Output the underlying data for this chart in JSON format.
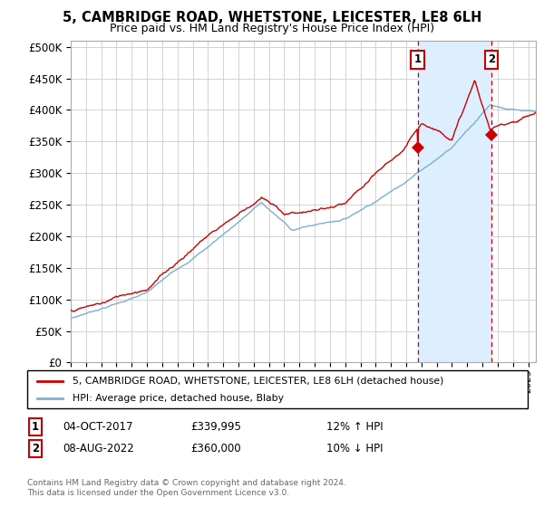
{
  "title": "5, CAMBRIDGE ROAD, WHETSTONE, LEICESTER, LE8 6LH",
  "subtitle": "Price paid vs. HM Land Registry's House Price Index (HPI)",
  "ylabel_ticks": [
    "£0",
    "£50K",
    "£100K",
    "£150K",
    "£200K",
    "£250K",
    "£300K",
    "£350K",
    "£400K",
    "£450K",
    "£500K"
  ],
  "ytick_vals": [
    0,
    50000,
    100000,
    150000,
    200000,
    250000,
    300000,
    350000,
    400000,
    450000,
    500000
  ],
  "ylim": [
    0,
    510000
  ],
  "xlim_start": 1995.0,
  "xlim_end": 2025.5,
  "marker1_x": 2017.75,
  "marker1_y": 339995,
  "marker1_label": "1",
  "marker1_date": "04-OCT-2017",
  "marker1_price": "£339,995",
  "marker1_hpi": "12% ↑ HPI",
  "marker2_x": 2022.58,
  "marker2_y": 360000,
  "marker2_label": "2",
  "marker2_date": "08-AUG-2022",
  "marker2_price": "£360,000",
  "marker2_hpi": "10% ↓ HPI",
  "legend_line1": "5, CAMBRIDGE ROAD, WHETSTONE, LEICESTER, LE8 6LH (detached house)",
  "legend_line2": "HPI: Average price, detached house, Blaby",
  "footer": "Contains HM Land Registry data © Crown copyright and database right 2024.\nThis data is licensed under the Open Government Licence v3.0.",
  "hpi_color": "#7ab0d4",
  "price_color": "#cc0000",
  "shade_color": "#ddeeff",
  "marker_color": "#cc0000",
  "background_color": "#ffffff",
  "grid_color": "#cccccc"
}
